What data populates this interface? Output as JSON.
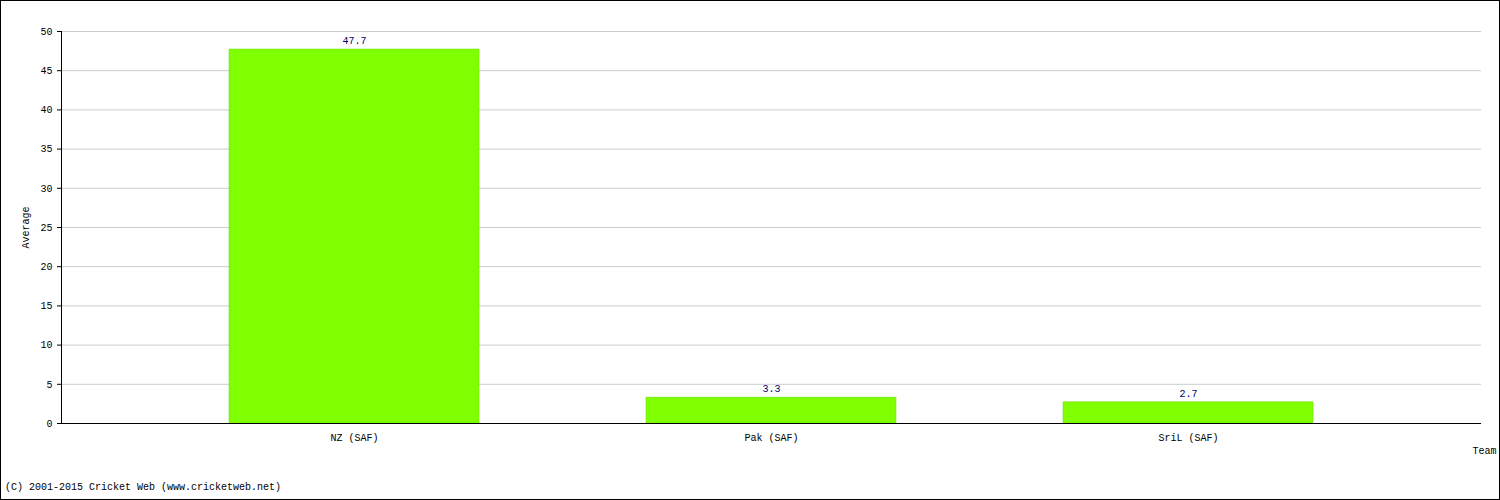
{
  "chart_data": {
    "type": "bar",
    "categories": [
      "NZ (SAF)",
      "Pak (SAF)",
      "SriL (SAF)"
    ],
    "values": [
      47.7,
      3.3,
      2.7
    ],
    "color": "#80ff00",
    "ylim": [
      0,
      50
    ],
    "yticks": [
      0,
      5,
      10,
      15,
      20,
      25,
      30,
      35,
      40,
      45,
      50
    ],
    "grid": true,
    "data_labels": true,
    "y_label": "Average",
    "x_label": "Team",
    "caption": "(C) 2001-2015 Cricket Web (www.cricketweb.net)"
  }
}
